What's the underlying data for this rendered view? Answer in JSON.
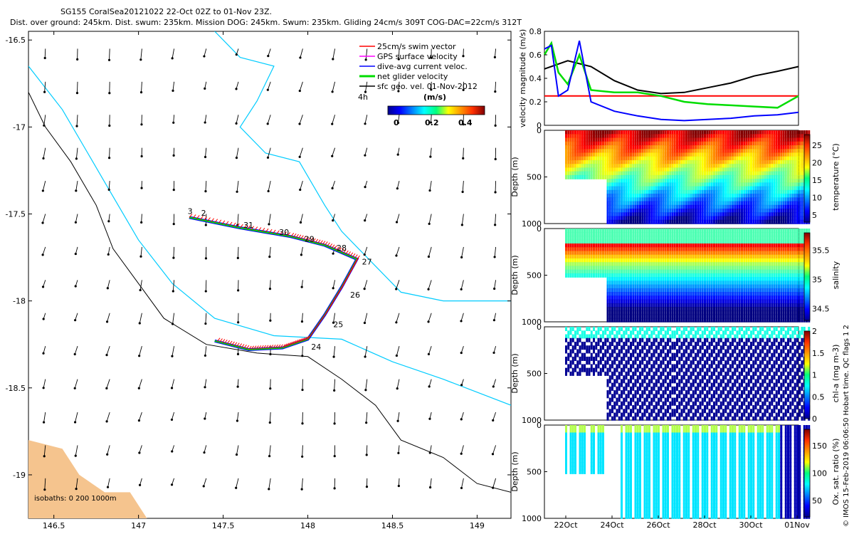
{
  "header": {
    "line1": "SG155 CoralSea20121022 22-Oct 02Z to 01-Nov 23Z.",
    "line2": "Dist. over ground: 245km. Dist. swum: 235km. Mission DOG: 245km. Swum: 235km. Gliding 24cm/s 309T COG-DAC=22cm/s 312T"
  },
  "colors": {
    "swim": "#ff0000",
    "gps": "#ff00ff",
    "dac": "#0000ff",
    "net": "#00dd00",
    "sfc": "#000000",
    "isobath": "#00ccff"
  },
  "chart_data": [
    {
      "type": "map",
      "title": "",
      "xlim": [
        146.35,
        149.2
      ],
      "ylim": [
        -19.25,
        -16.45
      ],
      "xticks": [
        "146.5",
        "147",
        "147.5",
        "148",
        "148.5",
        "149"
      ],
      "yticks": [
        "-16.5",
        "-17",
        "-17.5",
        "-18",
        "-18.5",
        "-19"
      ],
      "legend": {
        "placement": "top-right",
        "entries": [
          "25cm/s swim vector",
          "GPS surface velocity",
          "dive-avg current veloc.",
          "net glider velocity",
          "sfc geo. vel. 01-Nov-2012"
        ]
      },
      "colorbar": {
        "title": "(m/s)",
        "ticks": [
          "0",
          "0.2",
          "0.4"
        ],
        "range": [
          0,
          0.5
        ]
      },
      "isobaths_label": "isobaths: 0   200  1000m",
      "time_label": "4h",
      "track": [
        [
          147.3,
          -17.52
        ],
        [
          147.6,
          -17.58
        ],
        [
          147.9,
          -17.63
        ],
        [
          148.1,
          -17.68
        ],
        [
          148.29,
          -17.76
        ],
        [
          148.2,
          -17.92
        ],
        [
          148.1,
          -18.08
        ],
        [
          148.0,
          -18.22
        ],
        [
          147.85,
          -18.27
        ],
        [
          147.65,
          -18.28
        ],
        [
          147.45,
          -18.23
        ]
      ],
      "day_labels": [
        {
          "text": "3",
          "lon": 147.29,
          "lat": -17.5
        },
        {
          "text": "2",
          "lon": 147.37,
          "lat": -17.51
        },
        {
          "text": "31",
          "lon": 147.62,
          "lat": -17.58
        },
        {
          "text": "30",
          "lon": 147.83,
          "lat": -17.62
        },
        {
          "text": "29",
          "lon": 147.98,
          "lat": -17.66
        },
        {
          "text": "28",
          "lon": 148.17,
          "lat": -17.71
        },
        {
          "text": "27",
          "lon": 148.32,
          "lat": -17.79
        },
        {
          "text": "26",
          "lon": 148.25,
          "lat": -17.98
        },
        {
          "text": "25",
          "lon": 148.15,
          "lat": -18.15
        },
        {
          "text": "24",
          "lon": 148.02,
          "lat": -18.28
        }
      ],
      "coast": [
        [
          146.35,
          -16.8
        ],
        [
          146.45,
          -17.0
        ],
        [
          146.6,
          -17.2
        ],
        [
          146.75,
          -17.45
        ],
        [
          146.85,
          -17.7
        ],
        [
          147.0,
          -17.9
        ],
        [
          147.15,
          -18.1
        ],
        [
          147.4,
          -18.25
        ],
        [
          147.7,
          -18.3
        ],
        [
          148.0,
          -18.32
        ],
        [
          148.2,
          -18.45
        ],
        [
          148.4,
          -18.6
        ],
        [
          148.55,
          -18.8
        ],
        [
          148.8,
          -18.9
        ],
        [
          149.0,
          -19.05
        ],
        [
          149.2,
          -19.1
        ]
      ],
      "isobath_200": [
        [
          146.35,
          -16.65
        ],
        [
          146.55,
          -16.9
        ],
        [
          146.7,
          -17.15
        ],
        [
          146.85,
          -17.4
        ],
        [
          147.0,
          -17.65
        ],
        [
          147.2,
          -17.9
        ],
        [
          147.45,
          -18.1
        ],
        [
          147.8,
          -18.2
        ],
        [
          148.2,
          -18.22
        ],
        [
          148.5,
          -18.35
        ],
        [
          148.8,
          -18.45
        ],
        [
          149.2,
          -18.6
        ]
      ],
      "isobath_1000": [
        [
          147.45,
          -16.45
        ],
        [
          147.6,
          -16.6
        ],
        [
          147.8,
          -16.65
        ],
        [
          147.7,
          -16.85
        ],
        [
          147.6,
          -17.0
        ],
        [
          147.75,
          -17.15
        ],
        [
          147.95,
          -17.2
        ],
        [
          148.1,
          -17.45
        ],
        [
          148.2,
          -17.6
        ],
        [
          148.4,
          -17.8
        ],
        [
          148.55,
          -17.95
        ],
        [
          148.8,
          -18.0
        ],
        [
          149.0,
          -18.0
        ],
        [
          149.2,
          -18.0
        ]
      ],
      "land": [
        [
          146.35,
          -18.8
        ],
        [
          146.55,
          -18.85
        ],
        [
          146.65,
          -19.0
        ],
        [
          146.8,
          -19.1
        ],
        [
          146.95,
          -19.1
        ],
        [
          147.05,
          -19.25
        ],
        [
          146.35,
          -19.25
        ]
      ]
    },
    {
      "type": "line",
      "ylabel": "velocity magnitude (m/s)",
      "ylim": [
        0,
        0.8
      ],
      "yticks": [
        "0",
        "0.2",
        "0.4",
        "0.6",
        "0.8"
      ],
      "xlim": [
        0,
        10.9
      ],
      "series": [
        {
          "name": "",
          "color": "#000000",
          "x": [
            0,
            1,
            2,
            3,
            4,
            5,
            6,
            7,
            8,
            9,
            10,
            10.9
          ],
          "values": [
            0.48,
            0.55,
            0.5,
            0.38,
            0.3,
            0.27,
            0.28,
            0.32,
            0.36,
            0.42,
            0.46,
            0.5
          ]
        },
        {
          "name": "",
          "color": "#ff0000",
          "x": [
            0,
            10.9
          ],
          "values": [
            0.25,
            0.25
          ]
        },
        {
          "name": "",
          "color": "#00dd00",
          "x": [
            0,
            0.3,
            0.6,
            1,
            1.5,
            2,
            3,
            4,
            5,
            6,
            7,
            8,
            9,
            10,
            10.9
          ],
          "values": [
            0.6,
            0.7,
            0.45,
            0.35,
            0.6,
            0.3,
            0.28,
            0.28,
            0.25,
            0.2,
            0.18,
            0.17,
            0.16,
            0.15,
            0.25
          ]
        },
        {
          "name": "",
          "color": "#0000ff",
          "x": [
            0,
            0.3,
            0.6,
            1,
            1.5,
            2,
            3,
            4,
            5,
            6,
            7,
            8,
            9,
            10,
            10.9
          ],
          "values": [
            0.65,
            0.68,
            0.25,
            0.3,
            0.72,
            0.2,
            0.12,
            0.08,
            0.05,
            0.04,
            0.05,
            0.06,
            0.08,
            0.09,
            0.11
          ]
        }
      ]
    },
    {
      "type": "heatmap",
      "ylabel": "Depth (m)",
      "cbar_label": "temperature (°C)",
      "cbar_ticks": [
        "5",
        "10",
        "15",
        "20",
        "25"
      ],
      "cbar_range": [
        3,
        28
      ],
      "colormap": "jet",
      "ylim": [
        0,
        1000
      ],
      "yticks": [
        "0",
        "500",
        "1000"
      ]
    },
    {
      "type": "heatmap",
      "ylabel": "Depth (m)",
      "cbar_label": "salinity",
      "cbar_ticks": [
        "34.5",
        "35",
        "35.5"
      ],
      "cbar_range": [
        34.3,
        35.8
      ],
      "colormap": "jet",
      "ylim": [
        0,
        1000
      ],
      "yticks": [
        "0",
        "500",
        "1000"
      ]
    },
    {
      "type": "heatmap",
      "ylabel": "Depth (m)",
      "cbar_label": "chl-a (mg m-3)",
      "cbar_ticks": [
        "0",
        "0.5",
        "1",
        "1.5",
        "2"
      ],
      "cbar_range": [
        0,
        2
      ],
      "colormap": "jet",
      "ylim": [
        0,
        1000
      ],
      "yticks": [
        "0",
        "500",
        "1000"
      ]
    },
    {
      "type": "heatmap",
      "ylabel": "Depth (m)",
      "cbar_label": "Ox. sat. ratio (%)",
      "cbar_ticks": [
        "50",
        "100",
        "150"
      ],
      "cbar_range": [
        20,
        180
      ],
      "colormap": "jet",
      "ylim": [
        0,
        1000
      ],
      "yticks": [
        "0",
        "500",
        "1000"
      ],
      "xticks": [
        "22Oct",
        "24Oct",
        "26Oct",
        "28Oct",
        "30Oct",
        "01Nov"
      ]
    }
  ],
  "credit": "© IMOS 15-Feb-2019 06:06:50 Hobart time. QC flags 1  2"
}
